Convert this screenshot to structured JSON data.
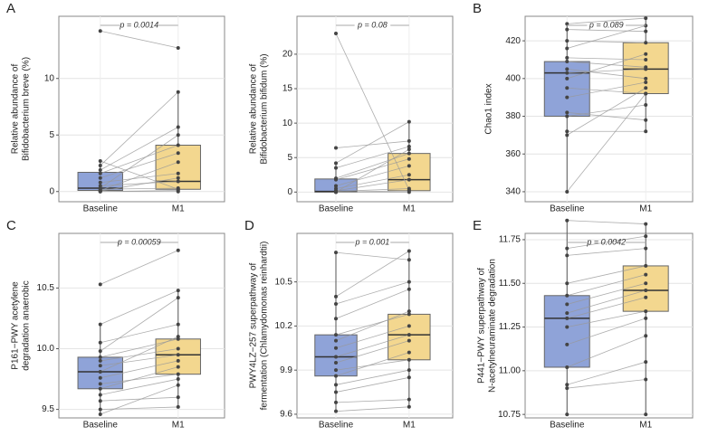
{
  "chart_data": [
    {
      "type": "box",
      "panel_label": "A",
      "annotation": "p = 0.0014",
      "ylabel": [
        "Relative abundance of",
        "Bifidobacterium breve (%)"
      ],
      "ylim": [
        -0.9,
        15.5
      ],
      "yticks": [
        0,
        5,
        10
      ],
      "groups": [
        {
          "name": "Baseline",
          "color": "#8fa3d8",
          "box": [
            0,
            0.1,
            0.3,
            1.7,
            2.7
          ],
          "points": [
            14.2,
            2.7,
            2.3,
            1.9,
            1.6,
            1.2,
            0.8,
            0.5,
            0.3,
            0.2,
            0.1,
            0,
            0,
            0.05
          ]
        },
        {
          "name": "M1",
          "color": "#f3d78f",
          "box": [
            0,
            0.2,
            0.9,
            4.1,
            8.8
          ],
          "points": [
            12.7,
            0.2,
            8.8,
            5.7,
            4.1,
            3.4,
            1.6,
            0.9,
            5.0,
            0.3,
            2.6,
            0,
            0.1,
            1.2
          ]
        }
      ]
    },
    {
      "type": "box",
      "annotation": "p = 0.08",
      "ylabel": [
        "Relative abundance of",
        "Bifidobacterium bifidum (%)"
      ],
      "ylim": [
        -1.4,
        25.5
      ],
      "yticks": [
        0,
        5,
        10,
        15,
        20
      ],
      "groups": [
        {
          "name": "Baseline",
          "color": "#8fa3d8",
          "box": [
            0,
            0,
            0.1,
            1.9,
            4.2
          ],
          "points": [
            23,
            6.4,
            4.2,
            3.5,
            2.0,
            1.8,
            0.9,
            0.5,
            0.2,
            0.1,
            0,
            0,
            0
          ]
        },
        {
          "name": "M1",
          "color": "#f3d78f",
          "box": [
            0,
            0.2,
            1.8,
            5.6,
            10.2
          ],
          "points": [
            0.3,
            7.4,
            10.2,
            6.6,
            5.6,
            4.8,
            3.8,
            2.5,
            1.8,
            0.5,
            0.2,
            0,
            6.2
          ]
        }
      ]
    },
    {
      "type": "box",
      "panel_label": "B",
      "annotation": "p = 0.089",
      "ylabel": [
        "Chao1 index"
      ],
      "ylim": [
        334.7,
        433
      ],
      "yticks": [
        340,
        360,
        380,
        400,
        420
      ],
      "groups": [
        {
          "name": "Baseline",
          "color": "#8fa3d8",
          "box": [
            340,
            380,
            403,
            409,
            429
          ],
          "points": [
            429,
            426,
            420,
            416,
            411,
            409,
            405,
            403,
            400,
            395,
            390,
            382,
            380,
            372,
            370,
            340
          ]
        },
        {
          "name": "M1",
          "color": "#f3d78f",
          "box": [
            372,
            392,
            405,
            419,
            432
          ],
          "points": [
            432,
            425,
            419,
            428,
            410,
            406,
            400,
            405,
            413,
            392,
            398,
            378,
            386,
            372,
            395,
            392
          ]
        }
      ]
    },
    {
      "type": "box",
      "panel_label": "C",
      "annotation": "p = 0.00059",
      "ylabel": [
        "P161−PWY acetylene",
        "degradation anaerobic"
      ],
      "ylim": [
        9.43,
        10.95
      ],
      "yticks": [
        9.5,
        {
          "value": 10,
          "label": "10.0"
        },
        10.5
      ],
      "groups": [
        {
          "name": "Baseline",
          "color": "#8fa3d8",
          "box": [
            9.46,
            9.67,
            9.81,
            9.93,
            10.2
          ],
          "points": [
            10.53,
            10.2,
            10.05,
            9.98,
            9.93,
            9.9,
            9.86,
            9.81,
            9.76,
            9.71,
            9.67,
            9.62,
            9.57,
            9.5,
            9.46
          ]
        },
        {
          "name": "M1",
          "color": "#f3d78f",
          "box": [
            9.52,
            9.79,
            9.95,
            10.08,
            10.48
          ],
          "points": [
            10.81,
            10.48,
            10.2,
            10.42,
            10.08,
            10.0,
            9.95,
            10.1,
            9.9,
            9.79,
            9.85,
            9.75,
            9.6,
            9.52,
            9.7
          ]
        }
      ]
    },
    {
      "type": "box",
      "panel_label": "D",
      "annotation": "p = 0.001",
      "ylabel": [
        "PWY4LZ−257 superpathway of",
        "fermentation (Chlamydomonas reinhardtii)"
      ],
      "ylim": [
        9.575,
        10.83
      ],
      "yticks": [
        9.6,
        9.9,
        10.2,
        10.5
      ],
      "groups": [
        {
          "name": "Baseline",
          "color": "#8fa3d8",
          "box": [
            9.62,
            9.86,
            9.99,
            10.14,
            10.7
          ],
          "points": [
            10.7,
            10.4,
            10.35,
            10.25,
            10.14,
            10.1,
            10.05,
            9.99,
            9.95,
            9.9,
            9.86,
            9.8,
            9.75,
            9.68,
            9.62
          ]
        },
        {
          "name": "M1",
          "color": "#f3d78f",
          "box": [
            9.65,
            9.97,
            10.14,
            10.28,
            10.71
          ],
          "points": [
            10.65,
            10.71,
            10.5,
            10.45,
            10.28,
            10.3,
            10.2,
            10.14,
            10.1,
            9.97,
            10.02,
            9.9,
            9.85,
            9.7,
            9.65
          ]
        }
      ]
    },
    {
      "type": "box",
      "panel_label": "E",
      "annotation": "p = 0.0042",
      "ylabel": [
        "P441−PWY superpathway of",
        "N-acetylneuraminate degradation"
      ],
      "ylim": [
        10.73,
        11.786
      ],
      "yticks": [
        10.75,
        {
          "value": 11,
          "label": "11.00"
        },
        11.25,
        {
          "value": 11.5,
          "label": "11.50"
        },
        11.75
      ],
      "groups": [
        {
          "name": "Baseline",
          "color": "#8fa3d8",
          "box": [
            10.75,
            11.02,
            11.3,
            11.43,
            11.86
          ],
          "points": [
            11.86,
            11.7,
            11.66,
            11.5,
            11.43,
            11.38,
            11.33,
            11.3,
            11.25,
            11.15,
            11.02,
            10.92,
            10.9,
            10.75
          ]
        },
        {
          "name": "M1",
          "color": "#f3d78f",
          "box": [
            10.75,
            11.34,
            11.46,
            11.6,
            11.84
          ],
          "points": [
            11.84,
            11.77,
            11.7,
            11.6,
            11.55,
            11.5,
            11.46,
            11.42,
            11.34,
            11.3,
            11.2,
            11.05,
            10.95,
            10.75
          ]
        }
      ]
    }
  ]
}
